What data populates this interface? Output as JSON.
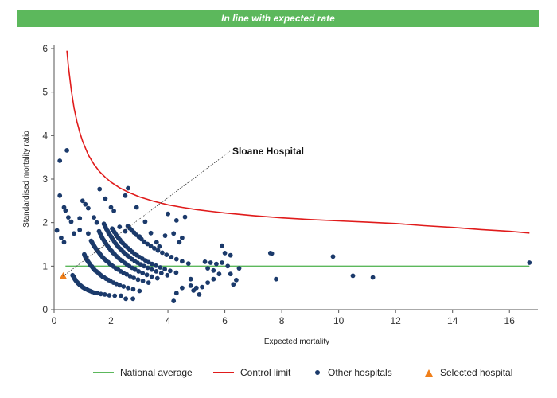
{
  "banner": {
    "text": "In line with expected rate",
    "color": "#5cb85c"
  },
  "chart_data": {
    "type": "scatter",
    "xlabel": "Expected mortality",
    "ylabel": "Standardised mortality ratio",
    "xlim": [
      0,
      17
    ],
    "ylim": [
      0,
      6
    ],
    "xticks": [
      0,
      2,
      4,
      6,
      8,
      10,
      12,
      14,
      16
    ],
    "yticks": [
      0,
      1,
      2,
      3,
      4,
      5,
      6
    ],
    "grid": false,
    "legend_position": "bottom",
    "annotation": {
      "text": "Sloane Hospital",
      "x": 0.32,
      "y": 0.77
    },
    "series": [
      {
        "name": "National average",
        "kind": "line",
        "color": "#5cb85c",
        "x": [
          0.4,
          16.7
        ],
        "y": [
          1.0,
          1.0
        ]
      },
      {
        "name": "Control limit",
        "kind": "line",
        "color": "#e01b1b",
        "x": [
          0.45,
          0.5,
          0.6,
          0.7,
          0.8,
          0.9,
          1.0,
          1.2,
          1.4,
          1.6,
          1.8,
          2.0,
          2.3,
          2.6,
          3.0,
          3.5,
          4.0,
          4.5,
          5.0,
          5.5,
          6.0,
          7.0,
          8.0,
          9.0,
          10.0,
          11.0,
          12.0,
          13.0,
          14.0,
          15.0,
          16.0,
          16.7
        ],
        "y": [
          5.95,
          5.6,
          5.06,
          4.64,
          4.33,
          4.08,
          3.87,
          3.56,
          3.34,
          3.17,
          3.04,
          2.93,
          2.8,
          2.7,
          2.59,
          2.49,
          2.41,
          2.35,
          2.3,
          2.26,
          2.22,
          2.16,
          2.11,
          2.07,
          2.04,
          2.01,
          1.98,
          1.93,
          1.89,
          1.84,
          1.8,
          1.76
        ]
      },
      {
        "name": "Other hospitals",
        "kind": "scatter",
        "color": "#1b3a6b",
        "points": [
          [
            0.2,
            3.42
          ],
          [
            0.45,
            3.66
          ],
          [
            0.2,
            2.62
          ],
          [
            0.35,
            2.35
          ],
          [
            0.4,
            2.28
          ],
          [
            0.5,
            2.12
          ],
          [
            0.6,
            2.02
          ],
          [
            0.9,
            2.1
          ],
          [
            1.0,
            2.5
          ],
          [
            1.1,
            2.42
          ],
          [
            1.2,
            2.33
          ],
          [
            1.4,
            2.12
          ],
          [
            1.5,
            2.0
          ],
          [
            1.6,
            2.77
          ],
          [
            1.8,
            2.55
          ],
          [
            2.0,
            2.35
          ],
          [
            2.1,
            2.27
          ],
          [
            2.5,
            2.62
          ],
          [
            2.6,
            2.79
          ],
          [
            2.9,
            2.35
          ],
          [
            3.2,
            2.02
          ],
          [
            4.0,
            2.2
          ],
          [
            4.3,
            2.05
          ],
          [
            4.6,
            2.13
          ],
          [
            2.3,
            1.9
          ],
          [
            2.5,
            1.8
          ],
          [
            3.0,
            1.68
          ],
          [
            3.4,
            1.76
          ],
          [
            3.6,
            1.55
          ],
          [
            3.7,
            1.45
          ],
          [
            3.9,
            1.7
          ],
          [
            4.2,
            1.75
          ],
          [
            4.4,
            1.55
          ],
          [
            4.5,
            1.65
          ],
          [
            5.9,
            1.47
          ],
          [
            6.0,
            1.3
          ],
          [
            6.2,
            1.25
          ],
          [
            0.7,
            1.75
          ],
          [
            0.9,
            1.83
          ],
          [
            0.1,
            1.82
          ],
          [
            0.25,
            1.65
          ],
          [
            0.35,
            1.55
          ],
          [
            1.2,
            1.75
          ],
          [
            5.3,
            1.1
          ],
          [
            5.5,
            1.08
          ],
          [
            5.7,
            1.05
          ],
          [
            5.9,
            1.08
          ],
          [
            6.1,
            1.0
          ],
          [
            6.5,
            0.95
          ],
          [
            5.4,
            0.95
          ],
          [
            5.6,
            0.9
          ],
          [
            5.8,
            0.82
          ],
          [
            6.2,
            0.82
          ],
          [
            6.4,
            0.68
          ],
          [
            6.3,
            0.58
          ],
          [
            5.6,
            0.7
          ],
          [
            5.4,
            0.62
          ],
          [
            5.2,
            0.52
          ],
          [
            5.0,
            0.5
          ],
          [
            4.8,
            0.55
          ],
          [
            4.5,
            0.5
          ],
          [
            4.9,
            0.44
          ],
          [
            5.1,
            0.35
          ],
          [
            4.3,
            0.38
          ],
          [
            4.2,
            0.2
          ],
          [
            4.8,
            0.7
          ],
          [
            7.6,
            1.3
          ],
          [
            7.65,
            1.29
          ],
          [
            7.8,
            0.7
          ],
          [
            9.8,
            1.22
          ],
          [
            10.5,
            0.78
          ],
          [
            11.2,
            0.74
          ],
          [
            16.7,
            1.08
          ],
          [
            2.77,
            0.25
          ],
          [
            2.52,
            0.25
          ],
          [
            2.35,
            0.32
          ],
          [
            2.13,
            0.32
          ],
          [
            1.94,
            0.33
          ],
          [
            1.78,
            0.35
          ],
          [
            1.64,
            0.36
          ],
          [
            1.52,
            0.38
          ],
          [
            1.42,
            0.39
          ],
          [
            1.33,
            0.41
          ],
          [
            1.26,
            0.43
          ],
          [
            1.19,
            0.45
          ],
          [
            1.13,
            0.47
          ],
          [
            1.07,
            0.49
          ],
          [
            1.02,
            0.51
          ],
          [
            0.98,
            0.53
          ],
          [
            0.94,
            0.55
          ],
          [
            0.9,
            0.57
          ],
          [
            0.87,
            0.59
          ],
          [
            0.84,
            0.61
          ],
          [
            0.81,
            0.63
          ],
          [
            0.78,
            0.65
          ],
          [
            0.75,
            0.68
          ],
          [
            0.73,
            0.7
          ],
          [
            0.71,
            0.72
          ],
          [
            0.69,
            0.75
          ],
          [
            0.67,
            0.77
          ],
          [
            0.65,
            0.79
          ],
          [
            3.0,
            0.43
          ],
          [
            2.78,
            0.47
          ],
          [
            2.6,
            0.5
          ],
          [
            2.44,
            0.53
          ],
          [
            2.31,
            0.56
          ],
          [
            2.19,
            0.59
          ],
          [
            2.09,
            0.62
          ],
          [
            1.99,
            0.65
          ],
          [
            1.91,
            0.68
          ],
          [
            1.83,
            0.71
          ],
          [
            1.76,
            0.74
          ],
          [
            1.7,
            0.76
          ],
          [
            1.64,
            0.79
          ],
          [
            1.59,
            0.82
          ],
          [
            1.54,
            0.85
          ],
          [
            1.49,
            0.88
          ],
          [
            1.44,
            0.9
          ],
          [
            1.4,
            0.93
          ],
          [
            1.36,
            0.96
          ],
          [
            1.33,
            0.99
          ],
          [
            1.29,
            1.01
          ],
          [
            1.26,
            1.04
          ],
          [
            1.23,
            1.07
          ],
          [
            1.2,
            1.1
          ],
          [
            1.17,
            1.13
          ],
          [
            1.15,
            1.15
          ],
          [
            1.12,
            1.18
          ],
          [
            1.1,
            1.21
          ],
          [
            1.08,
            1.24
          ],
          [
            1.06,
            1.27
          ],
          [
            3.32,
            0.62
          ],
          [
            3.12,
            0.66
          ],
          [
            2.95,
            0.69
          ],
          [
            2.8,
            0.73
          ],
          [
            2.67,
            0.77
          ],
          [
            2.55,
            0.81
          ],
          [
            2.44,
            0.84
          ],
          [
            2.34,
            0.88
          ],
          [
            2.25,
            0.92
          ],
          [
            2.17,
            0.95
          ],
          [
            2.09,
            0.99
          ],
          [
            2.02,
            1.02
          ],
          [
            1.96,
            1.05
          ],
          [
            1.9,
            1.09
          ],
          [
            1.84,
            1.12
          ],
          [
            1.79,
            1.15
          ],
          [
            1.74,
            1.18
          ],
          [
            1.7,
            1.21
          ],
          [
            1.65,
            1.25
          ],
          [
            1.61,
            1.28
          ],
          [
            1.58,
            1.31
          ],
          [
            1.54,
            1.34
          ],
          [
            1.5,
            1.37
          ],
          [
            1.47,
            1.4
          ],
          [
            1.44,
            1.43
          ],
          [
            1.41,
            1.46
          ],
          [
            1.38,
            1.49
          ],
          [
            1.35,
            1.52
          ],
          [
            1.33,
            1.55
          ],
          [
            1.3,
            1.58
          ],
          [
            3.63,
            0.72
          ],
          [
            3.43,
            0.76
          ],
          [
            3.26,
            0.8
          ],
          [
            3.11,
            0.84
          ],
          [
            2.97,
            0.88
          ],
          [
            2.85,
            0.92
          ],
          [
            2.74,
            0.96
          ],
          [
            2.64,
            1.0
          ],
          [
            2.55,
            1.04
          ],
          [
            2.47,
            1.08
          ],
          [
            2.39,
            1.12
          ],
          [
            2.32,
            1.15
          ],
          [
            2.25,
            1.19
          ],
          [
            2.19,
            1.23
          ],
          [
            2.13,
            1.27
          ],
          [
            2.08,
            1.3
          ],
          [
            2.03,
            1.34
          ],
          [
            1.98,
            1.38
          ],
          [
            1.93,
            1.42
          ],
          [
            1.89,
            1.45
          ],
          [
            1.85,
            1.49
          ],
          [
            1.81,
            1.53
          ],
          [
            1.77,
            1.57
          ],
          [
            1.74,
            1.6
          ],
          [
            1.7,
            1.64
          ],
          [
            1.67,
            1.68
          ],
          [
            1.64,
            1.72
          ],
          [
            1.61,
            1.76
          ],
          [
            1.58,
            1.8
          ],
          [
            3.98,
            0.79
          ],
          [
            3.77,
            0.84
          ],
          [
            3.59,
            0.88
          ],
          [
            3.43,
            0.92
          ],
          [
            3.29,
            0.96
          ],
          [
            3.16,
            1.0
          ],
          [
            3.04,
            1.04
          ],
          [
            2.93,
            1.08
          ],
          [
            2.83,
            1.12
          ],
          [
            2.74,
            1.16
          ],
          [
            2.66,
            1.2
          ],
          [
            2.58,
            1.24
          ],
          [
            2.51,
            1.28
          ],
          [
            2.44,
            1.32
          ],
          [
            2.38,
            1.36
          ],
          [
            2.32,
            1.4
          ],
          [
            2.26,
            1.44
          ],
          [
            2.21,
            1.48
          ],
          [
            2.16,
            1.52
          ],
          [
            2.11,
            1.57
          ],
          [
            2.07,
            1.61
          ],
          [
            2.03,
            1.65
          ],
          [
            1.99,
            1.69
          ],
          [
            1.95,
            1.73
          ],
          [
            1.91,
            1.77
          ],
          [
            1.88,
            1.81
          ],
          [
            1.84,
            1.85
          ],
          [
            1.81,
            1.89
          ],
          [
            1.78,
            1.93
          ],
          [
            1.75,
            1.97
          ],
          [
            4.29,
            0.85
          ],
          [
            4.08,
            0.89
          ],
          [
            3.89,
            0.93
          ],
          [
            3.73,
            0.97
          ],
          [
            3.58,
            1.01
          ],
          [
            3.44,
            1.05
          ],
          [
            3.32,
            1.09
          ],
          [
            3.21,
            1.13
          ],
          [
            3.1,
            1.17
          ],
          [
            3.0,
            1.21
          ],
          [
            2.91,
            1.25
          ],
          [
            2.82,
            1.29
          ],
          [
            2.74,
            1.33
          ],
          [
            2.67,
            1.37
          ],
          [
            2.6,
            1.41
          ],
          [
            2.53,
            1.45
          ],
          [
            2.47,
            1.49
          ],
          [
            2.41,
            1.53
          ],
          [
            2.36,
            1.57
          ],
          [
            2.31,
            1.61
          ],
          [
            2.26,
            1.65
          ],
          [
            2.21,
            1.69
          ],
          [
            2.17,
            1.73
          ],
          [
            2.12,
            1.78
          ],
          [
            2.08,
            1.82
          ],
          [
            2.04,
            1.86
          ],
          [
            4.72,
            1.06
          ],
          [
            4.5,
            1.11
          ],
          [
            4.3,
            1.16
          ],
          [
            4.12,
            1.21
          ],
          [
            3.95,
            1.26
          ],
          [
            3.8,
            1.31
          ],
          [
            3.65,
            1.36
          ],
          [
            3.52,
            1.41
          ],
          [
            3.4,
            1.46
          ],
          [
            3.28,
            1.51
          ],
          [
            3.17,
            1.56
          ],
          [
            3.07,
            1.62
          ],
          [
            2.98,
            1.67
          ],
          [
            2.89,
            1.72
          ],
          [
            2.81,
            1.77
          ],
          [
            2.73,
            1.82
          ],
          [
            2.66,
            1.87
          ],
          [
            2.59,
            1.92
          ]
        ]
      },
      {
        "name": "Selected hospital",
        "kind": "marker",
        "color": "#f07f1a",
        "points": [
          [
            0.32,
            0.77
          ]
        ]
      }
    ]
  }
}
